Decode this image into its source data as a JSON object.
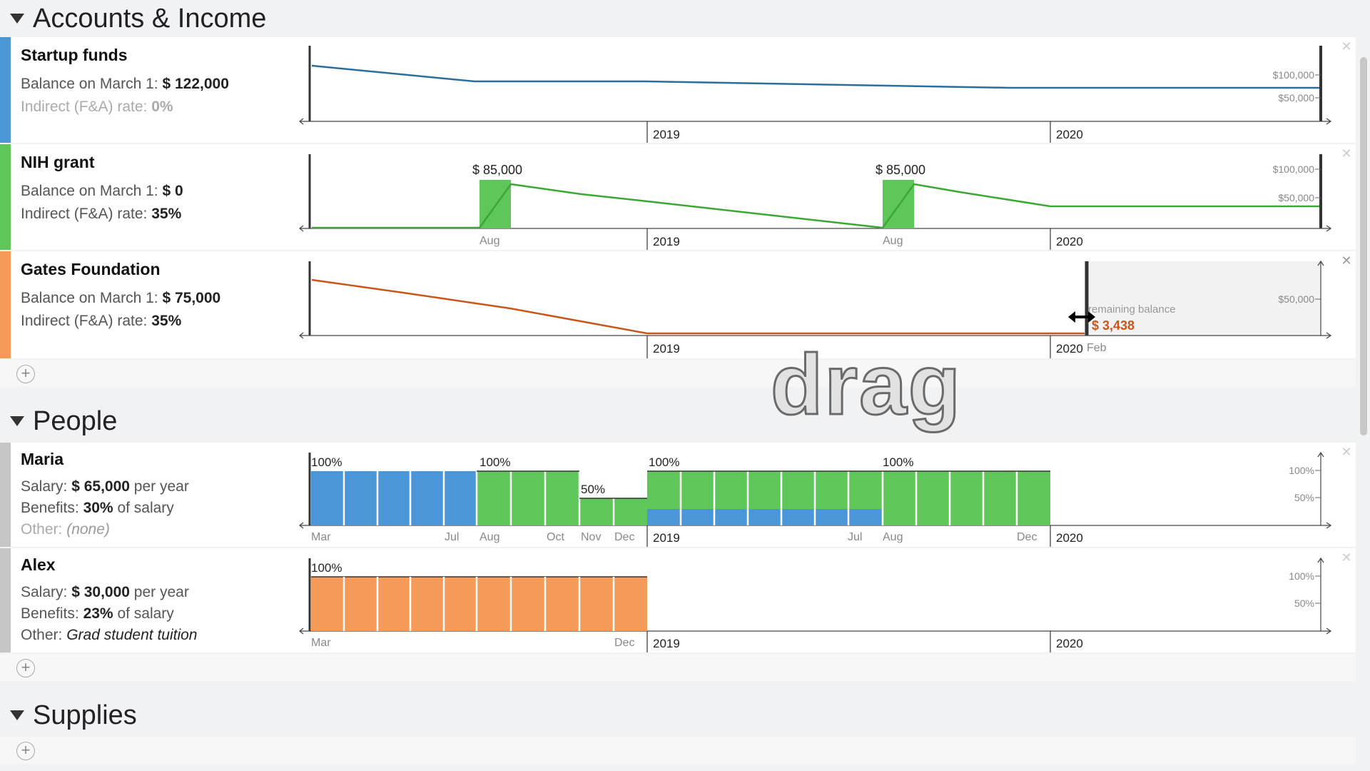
{
  "accounts": {
    "title": "Accounts & Income",
    "items": [
      {
        "name": "Startup funds",
        "balance_label": "Balance on March 1:",
        "balance": "$ 122,000",
        "rate_label": "Indirect (F&A) rate:",
        "rate": "0%",
        "color": "#4a96d6"
      },
      {
        "name": "NIH grant",
        "balance_label": "Balance on March 1:",
        "balance": "$ 0",
        "rate_label": "Indirect (F&A) rate:",
        "rate": "35%",
        "color": "#5fc65a"
      },
      {
        "name": "Gates Foundation",
        "balance_label": "Balance on March 1:",
        "balance": "$ 75,000",
        "rate_label": "Indirect (F&A) rate:",
        "rate": "35%",
        "color": "#f69a5a"
      }
    ],
    "chart_labels": {
      "y100": "$100,000",
      "y50": "$50,000",
      "x2019": "2019",
      "x2020": "2020",
      "aug": "Aug",
      "feb": "Feb",
      "deposit": "$ 85,000",
      "remaining_label": "remaining balance",
      "remaining_value": "$ 3,438"
    }
  },
  "people": {
    "title": "People",
    "items": [
      {
        "name": "Maria",
        "salary_label": "Salary:",
        "salary": "$ 65,000",
        "salary_unit": "per year",
        "benefits_label": "Benefits:",
        "benefits": "30%",
        "benefits_unit": "of salary",
        "other_label": "Other:",
        "other": "(none)"
      },
      {
        "name": "Alex",
        "salary_label": "Salary:",
        "salary": "$ 30,000",
        "salary_unit": "per year",
        "benefits_label": "Benefits:",
        "benefits": "23%",
        "benefits_unit": "of salary",
        "other_label": "Other:",
        "other": "Grad student tuition"
      }
    ],
    "chart_labels": {
      "p100": "100%",
      "p50": "50%",
      "mar": "Mar",
      "jul": "Jul",
      "aug": "Aug",
      "oct": "Oct",
      "nov": "Nov",
      "dec": "Dec",
      "x2019": "2019",
      "x2020": "2020"
    }
  },
  "supplies": {
    "title": "Supplies"
  },
  "overlay": {
    "drag_text": "drag"
  },
  "colors": {
    "blue": "#4a96d6",
    "green": "#5fc65a",
    "orange": "#f69a5a",
    "line_orange": "#c8561a",
    "line_blue": "#2a6f9c",
    "line_green": "#3aa832",
    "gray_swatch": "#c6c6c6"
  }
}
